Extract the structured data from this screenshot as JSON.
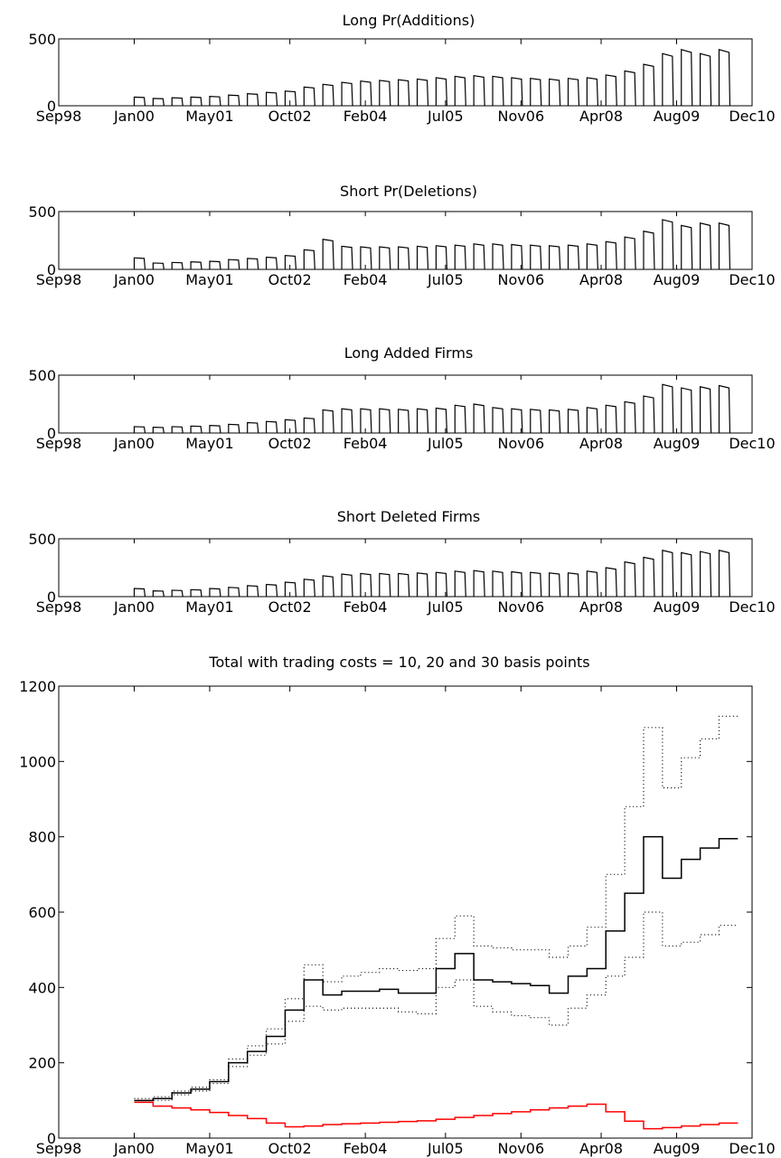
{
  "chart_data": [
    {
      "type": "line",
      "title": "Long Pr(Additions)",
      "xlim": [
        "Sep98",
        "Dec10"
      ],
      "ylim": [
        0,
        500
      ],
      "x_tick_labels": [
        "Sep98",
        "Jan00",
        "May01",
        "Oct02",
        "Feb04",
        "Jul05",
        "Nov06",
        "Apr08",
        "Aug09",
        "Dec10"
      ],
      "y_tick_labels": [
        "0",
        "500"
      ],
      "pulse_months": [
        "Jan00",
        "May00",
        "Sep00",
        "Jan01",
        "May01",
        "Sep01",
        "Jan02",
        "May02",
        "Sep02",
        "Jan03",
        "May03",
        "Sep03",
        "Jan04",
        "May04",
        "Sep04",
        "Jan05",
        "May05",
        "Sep05",
        "Jan06",
        "May06",
        "Sep06",
        "Jan07",
        "May07",
        "Sep07",
        "Jan08",
        "May08",
        "Sep08",
        "Jan09",
        "May09",
        "Sep09",
        "Jan10",
        "May10"
      ],
      "values": [
        65,
        55,
        60,
        65,
        70,
        80,
        90,
        100,
        110,
        140,
        160,
        175,
        185,
        190,
        195,
        200,
        210,
        220,
        225,
        220,
        210,
        205,
        200,
        205,
        210,
        230,
        260,
        310,
        390,
        420,
        390,
        420
      ],
      "series": [
        {
          "values": [
            65,
            55,
            60,
            65,
            70,
            80,
            90,
            100,
            110,
            140,
            160,
            175,
            185,
            190,
            195,
            200,
            210,
            220,
            225,
            220,
            210,
            205,
            200,
            205,
            210,
            230,
            260,
            310,
            390,
            420,
            390,
            420
          ]
        }
      ],
      "color": "#000000"
    },
    {
      "type": "line",
      "title": "Short Pr(Deletions)",
      "xlim": [
        "Sep98",
        "Dec10"
      ],
      "ylim": [
        0,
        500
      ],
      "x_tick_labels": [
        "Sep98",
        "Jan00",
        "May01",
        "Oct02",
        "Feb04",
        "Jul05",
        "Nov06",
        "Apr08",
        "Aug09",
        "Dec10"
      ],
      "y_tick_labels": [
        "0",
        "500"
      ],
      "pulse_months": [
        "Jan00",
        "May00",
        "Sep00",
        "Jan01",
        "May01",
        "Sep01",
        "Jan02",
        "May02",
        "Sep02",
        "Jan03",
        "May03",
        "Sep03",
        "Jan04",
        "May04",
        "Sep04",
        "Jan05",
        "May05",
        "Sep05",
        "Jan06",
        "May06",
        "Sep06",
        "Jan07",
        "May07",
        "Sep07",
        "Jan08",
        "May08",
        "Sep08",
        "Jan09",
        "May09",
        "Sep09",
        "Jan10",
        "May10"
      ],
      "values": [
        100,
        55,
        60,
        65,
        70,
        85,
        95,
        105,
        120,
        170,
        260,
        200,
        195,
        195,
        195,
        200,
        205,
        210,
        220,
        220,
        215,
        210,
        205,
        210,
        220,
        240,
        280,
        330,
        430,
        380,
        400,
        400
      ],
      "series": [
        {
          "values": [
            100,
            55,
            60,
            65,
            70,
            85,
            95,
            105,
            120,
            170,
            260,
            200,
            195,
            195,
            195,
            200,
            205,
            210,
            220,
            220,
            215,
            210,
            205,
            210,
            220,
            240,
            280,
            330,
            430,
            380,
            400,
            400
          ]
        }
      ],
      "color": "#000000"
    },
    {
      "type": "line",
      "title": "Long Added Firms",
      "xlim": [
        "Sep98",
        "Dec10"
      ],
      "ylim": [
        0,
        500
      ],
      "x_tick_labels": [
        "Sep98",
        "Jan00",
        "May01",
        "Oct02",
        "Feb04",
        "Jul05",
        "Nov06",
        "Apr08",
        "Aug09",
        "Dec10"
      ],
      "y_tick_labels": [
        "0",
        "500"
      ],
      "pulse_months": [
        "Jan00",
        "May00",
        "Sep00",
        "Jan01",
        "May01",
        "Sep01",
        "Jan02",
        "May02",
        "Sep02",
        "Jan03",
        "May03",
        "Sep03",
        "Jan04",
        "May04",
        "Sep04",
        "Jan05",
        "May05",
        "Sep05",
        "Jan06",
        "May06",
        "Sep06",
        "Jan07",
        "May07",
        "Sep07",
        "Jan08",
        "May08",
        "Sep08",
        "Jan09",
        "May09",
        "Sep09",
        "Jan10",
        "May10"
      ],
      "values": [
        55,
        50,
        55,
        60,
        65,
        75,
        90,
        100,
        115,
        130,
        200,
        210,
        210,
        210,
        205,
        210,
        215,
        240,
        250,
        220,
        210,
        205,
        200,
        205,
        220,
        240,
        270,
        320,
        420,
        390,
        400,
        410
      ],
      "series": [
        {
          "values": [
            55,
            50,
            55,
            60,
            65,
            75,
            90,
            100,
            115,
            130,
            200,
            210,
            210,
            210,
            205,
            210,
            215,
            240,
            250,
            220,
            210,
            205,
            200,
            205,
            220,
            240,
            270,
            320,
            420,
            390,
            400,
            410
          ]
        }
      ],
      "color": "#000000"
    },
    {
      "type": "line",
      "title": "Short Deleted Firms",
      "xlim": [
        "Sep98",
        "Dec10"
      ],
      "ylim": [
        0,
        500
      ],
      "x_tick_labels": [
        "Sep98",
        "Jan00",
        "May01",
        "Oct02",
        "Feb04",
        "Jul05",
        "Nov06",
        "Apr08",
        "Aug09",
        "Dec10"
      ],
      "y_tick_labels": [
        "0",
        "500"
      ],
      "pulse_months": [
        "Jan00",
        "May00",
        "Sep00",
        "Jan01",
        "May01",
        "Sep01",
        "Jan02",
        "May02",
        "Sep02",
        "Jan03",
        "May03",
        "Sep03",
        "Jan04",
        "May04",
        "Sep04",
        "Jan05",
        "May05",
        "Sep05",
        "Jan06",
        "May06",
        "Sep06",
        "Jan07",
        "May07",
        "Sep07",
        "Jan08",
        "May08",
        "Sep08",
        "Jan09",
        "May09",
        "Sep09",
        "Jan10",
        "May10"
      ],
      "values": [
        70,
        50,
        55,
        60,
        70,
        80,
        95,
        105,
        125,
        150,
        180,
        195,
        200,
        200,
        200,
        205,
        210,
        220,
        225,
        220,
        215,
        210,
        205,
        205,
        220,
        250,
        300,
        340,
        400,
        380,
        390,
        400
      ],
      "series": [
        {
          "values": [
            70,
            50,
            55,
            60,
            70,
            80,
            95,
            105,
            125,
            150,
            180,
            195,
            200,
            200,
            200,
            205,
            210,
            220,
            225,
            220,
            215,
            210,
            205,
            205,
            220,
            250,
            300,
            340,
            400,
            380,
            390,
            400
          ]
        }
      ],
      "color": "#000000"
    },
    {
      "type": "line",
      "title": "Total with trading costs = 10, 20 and 30 basis points",
      "xlim": [
        "Sep98",
        "Dec10"
      ],
      "ylim": [
        0,
        1200
      ],
      "x_tick_labels": [
        "Sep98",
        "Jan00",
        "May01",
        "Oct02",
        "Feb04",
        "Jul05",
        "Nov06",
        "Apr08",
        "Aug09",
        "Dec10"
      ],
      "y_tick_labels": [
        "0",
        "200",
        "400",
        "600",
        "800",
        "1000",
        "1200"
      ],
      "x": [
        "Jan00",
        "May00",
        "Sep00",
        "Jan01",
        "May01",
        "Sep01",
        "Jan02",
        "May02",
        "Sep02",
        "Jan03",
        "May03",
        "Sep03",
        "Jan04",
        "May04",
        "Sep04",
        "Jan05",
        "May05",
        "Sep05",
        "Jan06",
        "May06",
        "Sep06",
        "Jan07",
        "May07",
        "Sep07",
        "Jan08",
        "May08",
        "Sep08",
        "Jan09",
        "May09",
        "Sep09",
        "Jan10",
        "May10"
      ],
      "series": [
        {
          "style": "solid",
          "color": "#000000",
          "values": [
            100,
            105,
            120,
            130,
            150,
            200,
            230,
            270,
            340,
            420,
            380,
            390,
            390,
            395,
            385,
            385,
            450,
            490,
            420,
            415,
            410,
            405,
            385,
            430,
            450,
            550,
            650,
            800,
            690,
            740,
            770,
            795
          ]
        },
        {
          "style": "dotted",
          "color": "#000000",
          "values": [
            105,
            110,
            125,
            135,
            155,
            210,
            245,
            290,
            370,
            460,
            415,
            430,
            440,
            450,
            445,
            450,
            530,
            590,
            510,
            505,
            500,
            500,
            480,
            510,
            560,
            700,
            880,
            1090,
            930,
            1010,
            1060,
            1120
          ]
        },
        {
          "style": "dotted",
          "color": "#000000",
          "values": [
            95,
            100,
            115,
            125,
            145,
            190,
            220,
            250,
            310,
            350,
            340,
            345,
            345,
            345,
            335,
            330,
            400,
            420,
            350,
            335,
            325,
            320,
            300,
            345,
            380,
            430,
            480,
            600,
            510,
            520,
            540,
            565
          ]
        },
        {
          "style": "solid",
          "color": "#ff0000",
          "values": [
            95,
            85,
            80,
            75,
            68,
            60,
            52,
            40,
            30,
            32,
            36,
            38,
            40,
            42,
            44,
            46,
            50,
            55,
            60,
            65,
            70,
            75,
            80,
            85,
            90,
            70,
            45,
            25,
            28,
            32,
            36,
            40
          ]
        }
      ]
    }
  ]
}
